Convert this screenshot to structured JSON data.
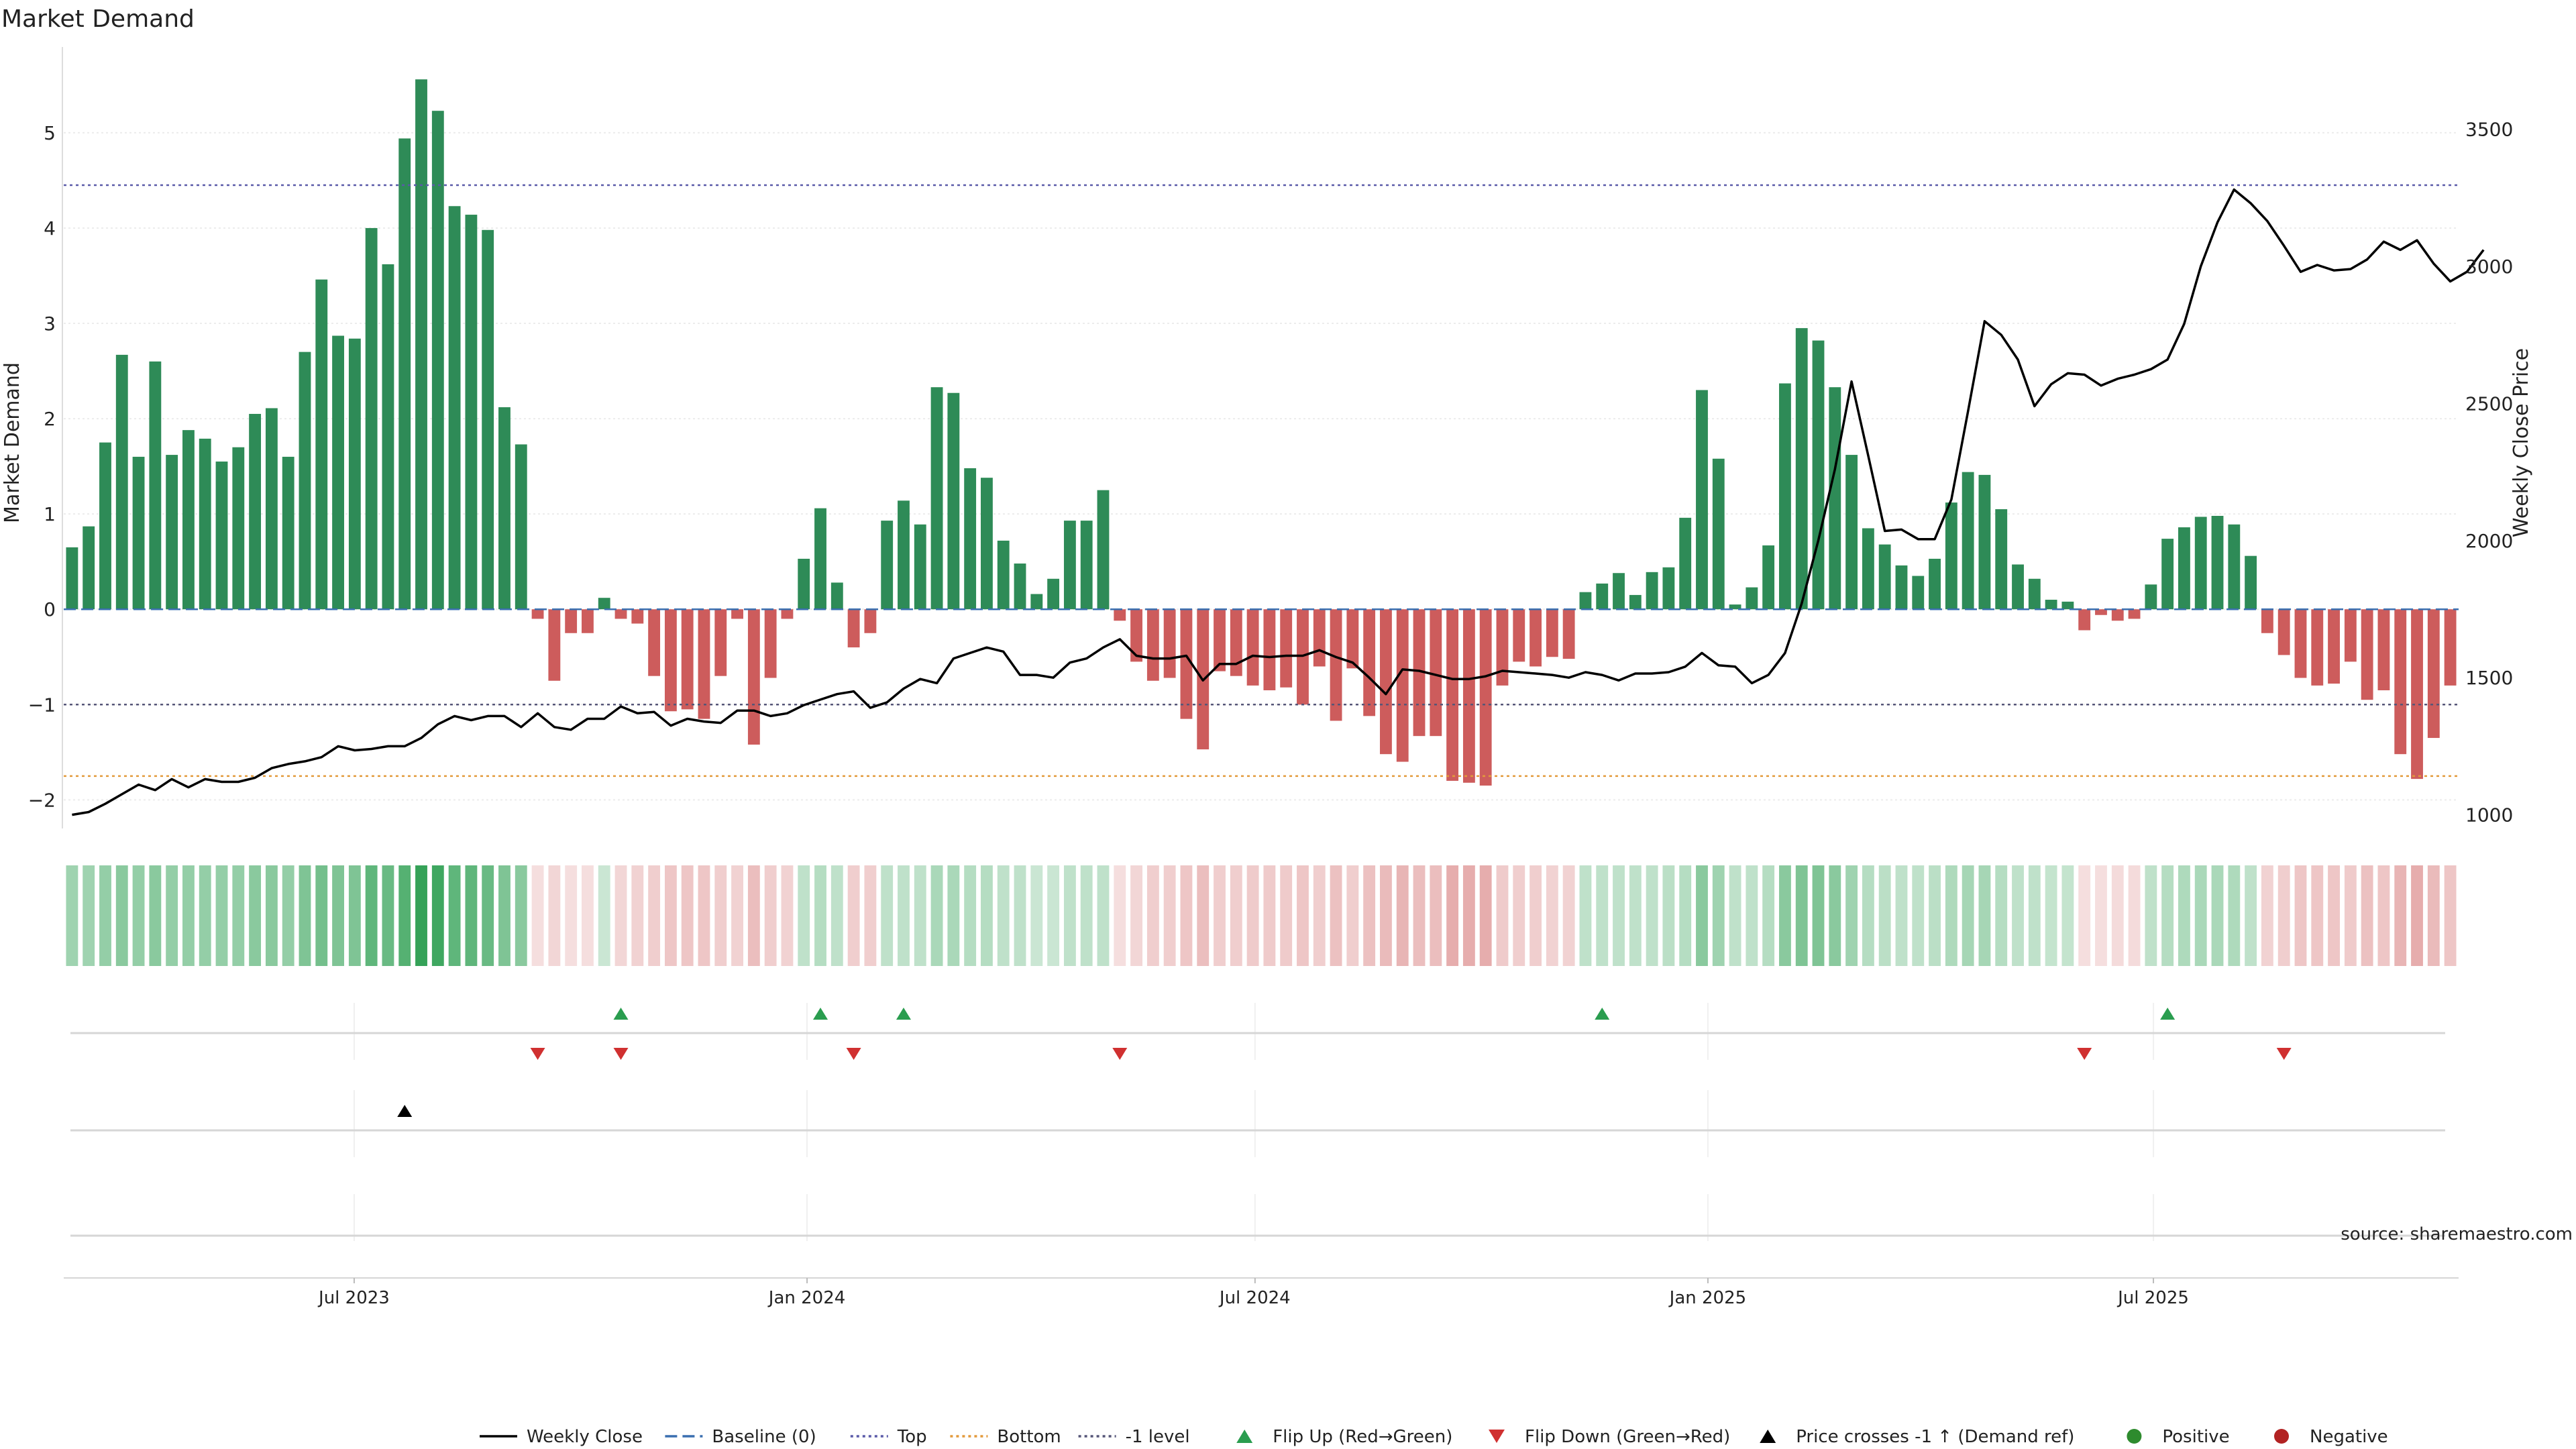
{
  "title": "Market Demand",
  "source": "source: sharemaestro.com",
  "chart_data": {
    "type": "bar",
    "title": "Market Demand",
    "ylabel": "Market Demand",
    "y2label": "Weekly Close Price",
    "ylim": [
      -2.3,
      5.9
    ],
    "y2lim": [
      950,
      3800
    ],
    "yticks": [
      -2,
      -1,
      0,
      1,
      2,
      3,
      4,
      5
    ],
    "y2ticks": [
      1000,
      1500,
      2000,
      2500,
      3000,
      3500
    ],
    "x_start": "2023-03-05",
    "x_end": "2025-11-02",
    "xticks": [
      {
        "label": "Jul 2023",
        "date": "2023-07-01"
      },
      {
        "label": "Jan 2024",
        "date": "2024-01-01"
      },
      {
        "label": "Jul 2024",
        "date": "2024-07-01"
      },
      {
        "label": "Jan 2025",
        "date": "2025-01-01"
      },
      {
        "label": "Jul 2025",
        "date": "2025-07-01"
      }
    ],
    "grid": true,
    "reference_lines": {
      "top": 4.45,
      "bottom": -1.75,
      "minus_one": -1,
      "baseline": 0
    },
    "demand": [
      0.65,
      0.87,
      1.75,
      2.67,
      1.6,
      2.6,
      1.62,
      1.88,
      1.79,
      1.55,
      1.7,
      2.05,
      2.11,
      1.6,
      2.7,
      3.46,
      2.87,
      2.84,
      4.0,
      3.62,
      4.94,
      5.56,
      5.23,
      4.23,
      4.14,
      3.98,
      2.12,
      1.73,
      -0.1,
      -0.75,
      -0.25,
      -0.25,
      0.12,
      -0.1,
      -0.15,
      -0.7,
      -1.07,
      -1.05,
      -1.15,
      -0.7,
      -0.1,
      -1.42,
      -0.72,
      -0.1,
      0.53,
      1.06,
      0.28,
      -0.4,
      -0.25,
      0.93,
      1.14,
      0.89,
      2.33,
      2.27,
      1.48,
      1.38,
      0.72,
      0.48,
      0.16,
      0.32,
      0.93,
      0.93,
      1.25,
      -0.12,
      -0.55,
      -0.75,
      -0.72,
      -1.15,
      -1.47,
      -0.65,
      -0.7,
      -0.8,
      -0.85,
      -0.82,
      -1.0,
      -0.6,
      -1.17,
      -0.62,
      -1.12,
      -1.52,
      -1.6,
      -1.33,
      -1.33,
      -1.8,
      -1.82,
      -1.85,
      -0.8,
      -0.55,
      -0.6,
      -0.5,
      -0.52,
      0.18,
      0.27,
      0.38,
      0.15,
      0.39,
      0.44,
      0.96,
      2.3,
      1.58,
      0.05,
      0.23,
      0.67,
      2.37,
      2.95,
      2.82,
      2.33,
      1.62,
      0.85,
      0.68,
      0.46,
      0.35,
      0.53,
      1.12,
      1.44,
      1.41,
      1.05,
      0.47,
      0.32,
      0.1,
      0.08,
      -0.22,
      -0.06,
      -0.12,
      -0.1,
      0.26,
      0.74,
      0.86,
      0.97,
      0.98,
      0.89,
      0.56,
      -0.25,
      -0.48,
      -0.72,
      -0.8,
      -0.78,
      -0.55,
      -0.95,
      -0.85,
      -1.52,
      -1.78,
      -1.35,
      -0.8
    ],
    "weekly_close": [
      1000,
      1010,
      1040,
      1075,
      1110,
      1090,
      1130,
      1100,
      1130,
      1120,
      1120,
      1135,
      1170,
      1185,
      1195,
      1210,
      1250,
      1235,
      1240,
      1250,
      1250,
      1280,
      1330,
      1360,
      1345,
      1360,
      1360,
      1320,
      1370,
      1320,
      1310,
      1350,
      1350,
      1395,
      1370,
      1375,
      1325,
      1350,
      1340,
      1335,
      1380,
      1380,
      1360,
      1370,
      1400,
      1420,
      1440,
      1450,
      1390,
      1410,
      1460,
      1495,
      1480,
      1570,
      1590,
      1610,
      1595,
      1510,
      1510,
      1500,
      1555,
      1570,
      1610,
      1640,
      1580,
      1570,
      1570,
      1580,
      1490,
      1550,
      1550,
      1580,
      1575,
      1580,
      1580,
      1600,
      1575,
      1555,
      1500,
      1440,
      1530,
      1525,
      1510,
      1495,
      1495,
      1505,
      1525,
      1520,
      1515,
      1510,
      1500,
      1520,
      1510,
      1490,
      1515,
      1515,
      1520,
      1540,
      1590,
      1545,
      1540,
      1480,
      1510,
      1590,
      1770,
      2000,
      2260,
      2580,
      2310,
      2035,
      2040,
      2005,
      2005,
      2150,
      2470,
      2800,
      2750,
      2660,
      2490,
      2570,
      2610,
      2605,
      2565,
      2590,
      2605,
      2625,
      2660,
      2790,
      3000,
      3160,
      3280,
      3230,
      3165,
      3075,
      2980,
      3005,
      2985,
      2990,
      3025,
      3090,
      3060,
      3095,
      3010,
      2945,
      2980,
      3060
    ],
    "heat_alpha": [
      0.45,
      0.45,
      0.5,
      0.55,
      0.5,
      0.55,
      0.5,
      0.5,
      0.5,
      0.5,
      0.5,
      0.55,
      0.55,
      0.5,
      0.6,
      0.65,
      0.6,
      0.6,
      0.75,
      0.7,
      0.8,
      0.95,
      0.9,
      0.75,
      0.75,
      0.7,
      0.6,
      0.55,
      0.2,
      0.25,
      0.2,
      0.2,
      0.25,
      0.25,
      0.28,
      0.3,
      0.35,
      0.35,
      0.35,
      0.3,
      0.28,
      0.4,
      0.3,
      0.28,
      0.3,
      0.35,
      0.3,
      0.3,
      0.3,
      0.3,
      0.3,
      0.3,
      0.4,
      0.4,
      0.35,
      0.35,
      0.3,
      0.3,
      0.25,
      0.25,
      0.3,
      0.3,
      0.3,
      0.2,
      0.25,
      0.3,
      0.3,
      0.35,
      0.4,
      0.3,
      0.3,
      0.32,
      0.32,
      0.32,
      0.35,
      0.3,
      0.38,
      0.3,
      0.38,
      0.42,
      0.45,
      0.4,
      0.4,
      0.5,
      0.5,
      0.5,
      0.32,
      0.3,
      0.3,
      0.28,
      0.28,
      0.3,
      0.3,
      0.3,
      0.3,
      0.3,
      0.32,
      0.35,
      0.55,
      0.45,
      0.3,
      0.3,
      0.35,
      0.55,
      0.6,
      0.6,
      0.55,
      0.45,
      0.35,
      0.32,
      0.3,
      0.3,
      0.32,
      0.38,
      0.42,
      0.42,
      0.35,
      0.3,
      0.3,
      0.28,
      0.28,
      0.2,
      0.2,
      0.22,
      0.22,
      0.3,
      0.35,
      0.38,
      0.4,
      0.4,
      0.38,
      0.3,
      0.28,
      0.3,
      0.35,
      0.35,
      0.35,
      0.32,
      0.38,
      0.35,
      0.45,
      0.5,
      0.42,
      0.35
    ],
    "flip_up_weeks": [
      33,
      45,
      50,
      92,
      126
    ],
    "flip_down_weeks": [
      28,
      33,
      47,
      63,
      121,
      133
    ],
    "price_cross_weeks": [
      20
    ],
    "colors": {
      "positive": "#2e8b57",
      "negative": "#cd5c5c",
      "price": "#000000",
      "top": "#5a5aa8",
      "bottom": "#e39a3b",
      "minus_one": "#555577",
      "baseline": "#3a6fb0",
      "flip_up": "#2a9d4f",
      "flip_down": "#d03030",
      "heat_positive": "#2a9d4f",
      "heat_negative": "#cd5c5c"
    },
    "legend_position": "bottom-center",
    "legend": [
      {
        "label": "Weekly Close",
        "kind": "line",
        "color": "#000000",
        "dash": ""
      },
      {
        "label": "Baseline (0)",
        "kind": "line",
        "color": "#3a6fb0",
        "dash": "18,8"
      },
      {
        "label": "Top",
        "kind": "line",
        "color": "#5a5aa8",
        "dash": "4,5"
      },
      {
        "label": "Bottom",
        "kind": "line",
        "color": "#e39a3b",
        "dash": "4,5"
      },
      {
        "label": "-1 level",
        "kind": "line",
        "color": "#555577",
        "dash": "4,5"
      },
      {
        "label": "Flip Up (Red→Green)",
        "kind": "tri-up",
        "color": "#2a9d4f"
      },
      {
        "label": "Flip Down (Green→Red)",
        "kind": "tri-down",
        "color": "#d03030"
      },
      {
        "label": "Price crosses -1 ↑ (Demand ref)",
        "kind": "tri-up",
        "color": "#000000"
      },
      {
        "label": "Positive",
        "kind": "dot",
        "color": "#2e8b2e"
      },
      {
        "label": "Negative",
        "kind": "dot",
        "color": "#b22222"
      }
    ]
  }
}
